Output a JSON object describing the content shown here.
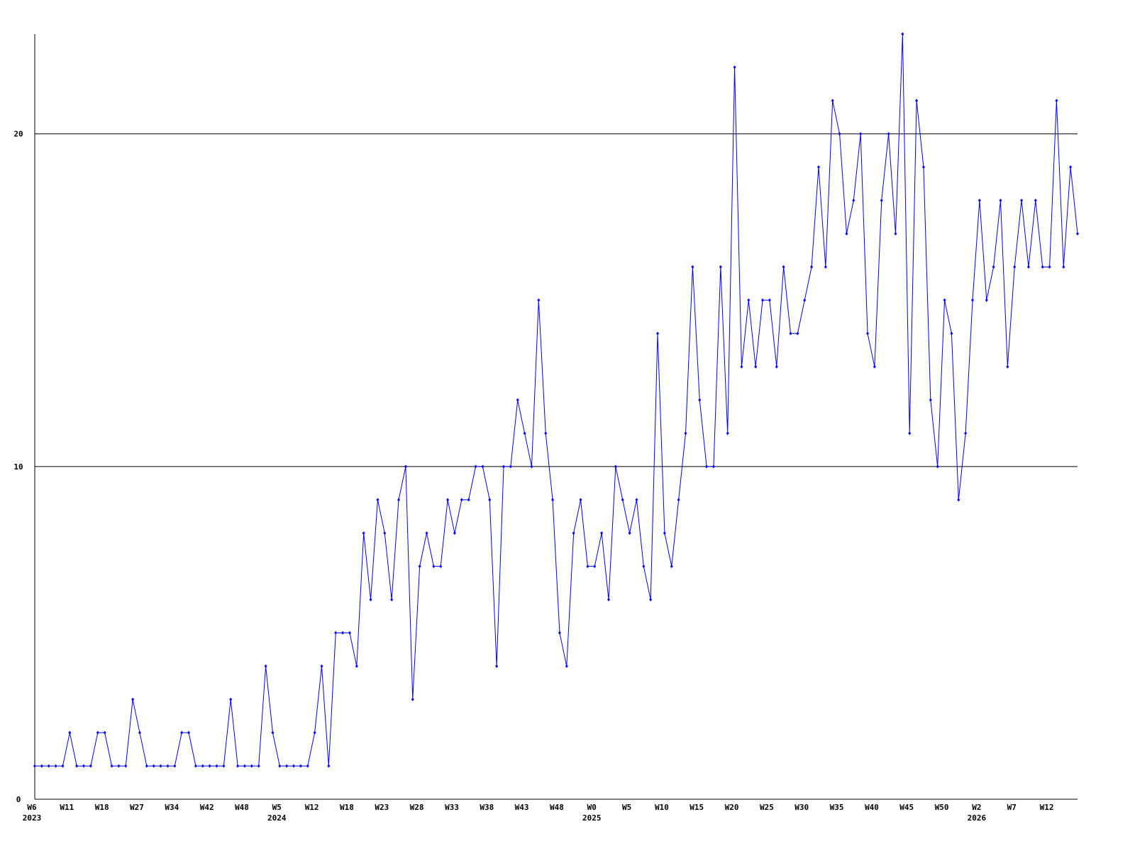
{
  "chart_data": {
    "type": "line",
    "categories": [
      "W6",
      null,
      null,
      null,
      null,
      "W11",
      null,
      null,
      null,
      null,
      "W18",
      null,
      null,
      null,
      null,
      "W27",
      null,
      null,
      null,
      null,
      "W34",
      null,
      null,
      null,
      null,
      "W42",
      null,
      null,
      null,
      null,
      "W48",
      null,
      null,
      null,
      null,
      "W5",
      null,
      null,
      null,
      null,
      "W12",
      null,
      null,
      null,
      null,
      "W18",
      null,
      null,
      null,
      null,
      "W23",
      null,
      null,
      null,
      null,
      "W28",
      null,
      null,
      null,
      null,
      "W33",
      null,
      null,
      null,
      null,
      "W38",
      null,
      null,
      null,
      null,
      "W43",
      null,
      null,
      null,
      null,
      "W48",
      null,
      null,
      null,
      null,
      "W0",
      null,
      null,
      null,
      null,
      "W5",
      null,
      null,
      null,
      null,
      "W10",
      null,
      null,
      null,
      null,
      "W15",
      null,
      null,
      null,
      null,
      "W20",
      null,
      null,
      null,
      null,
      "W25",
      null,
      null,
      null,
      null,
      "W30",
      null,
      null,
      null,
      null,
      "W35",
      null,
      null,
      null,
      null,
      "W40",
      null,
      null,
      null,
      null,
      "W45",
      null,
      null,
      null,
      null,
      "W50",
      null,
      null,
      null,
      null,
      "W2",
      null,
      null,
      null,
      null,
      "W7",
      null,
      null,
      null,
      null,
      "W12",
      null,
      null,
      null,
      null
    ],
    "year_labels": [
      "2023",
      null,
      null,
      null,
      null,
      null,
      null,
      null,
      null,
      null,
      null,
      null,
      null,
      null,
      null,
      null,
      null,
      null,
      null,
      null,
      null,
      null,
      null,
      null,
      null,
      null,
      null,
      null,
      null,
      null,
      null,
      null,
      null,
      null,
      null,
      "2024",
      null,
      null,
      null,
      null,
      null,
      null,
      null,
      null,
      null,
      null,
      null,
      null,
      null,
      null,
      null,
      null,
      null,
      null,
      null,
      null,
      null,
      null,
      null,
      null,
      null,
      null,
      null,
      null,
      null,
      null,
      null,
      null,
      null,
      null,
      null,
      null,
      null,
      null,
      null,
      null,
      null,
      null,
      null,
      null,
      "2025",
      null,
      null,
      null,
      null,
      null,
      null,
      null,
      null,
      null,
      null,
      null,
      null,
      null,
      null,
      null,
      null,
      null,
      null,
      null,
      null,
      null,
      null,
      null,
      null,
      null,
      null,
      null,
      null,
      null,
      null,
      null,
      null,
      null,
      null,
      null,
      null,
      null,
      null,
      null,
      null,
      null,
      null,
      null,
      null,
      null,
      null,
      null,
      null,
      null,
      null,
      null,
      null,
      null,
      null,
      "2026",
      null,
      null,
      null,
      null,
      null,
      null,
      null,
      null,
      null,
      null,
      null,
      null,
      null,
      null
    ],
    "series": [
      {
        "color": "#0000ff",
        "values": [
          1,
          1,
          1,
          1,
          1,
          2,
          1,
          1,
          1,
          2,
          2,
          1,
          1,
          1,
          3,
          2,
          1,
          1,
          1,
          1,
          1,
          2,
          2,
          1,
          1,
          1,
          1,
          1,
          3,
          1,
          1,
          1,
          1,
          4,
          2,
          1,
          1,
          1,
          1,
          1,
          2,
          4,
          1,
          5,
          5,
          5,
          4,
          8,
          6,
          9,
          8,
          6,
          9,
          10,
          3,
          7,
          8,
          7,
          7,
          9,
          8,
          9,
          9,
          10,
          10,
          9,
          4,
          10,
          10,
          12,
          11,
          10,
          15,
          11,
          9,
          5,
          4,
          8,
          9,
          7,
          7,
          8,
          6,
          10,
          9,
          8,
          9,
          7,
          6,
          14,
          8,
          7,
          9,
          11,
          16,
          12,
          10,
          10,
          16,
          11,
          22,
          13,
          15,
          13,
          15,
          15,
          13,
          16,
          14,
          14,
          15,
          16,
          19,
          16,
          21,
          20,
          17,
          18,
          20,
          14,
          13,
          18,
          20,
          17,
          23,
          11,
          21,
          19,
          12,
          10,
          15,
          14,
          9,
          11,
          15,
          18,
          15,
          16,
          18,
          13,
          16,
          18,
          16,
          18,
          16,
          16,
          21,
          16,
          19,
          17
        ]
      }
    ],
    "ylim": [
      0,
      23
    ],
    "yticks": [
      0,
      10,
      20
    ],
    "grid": true
  }
}
